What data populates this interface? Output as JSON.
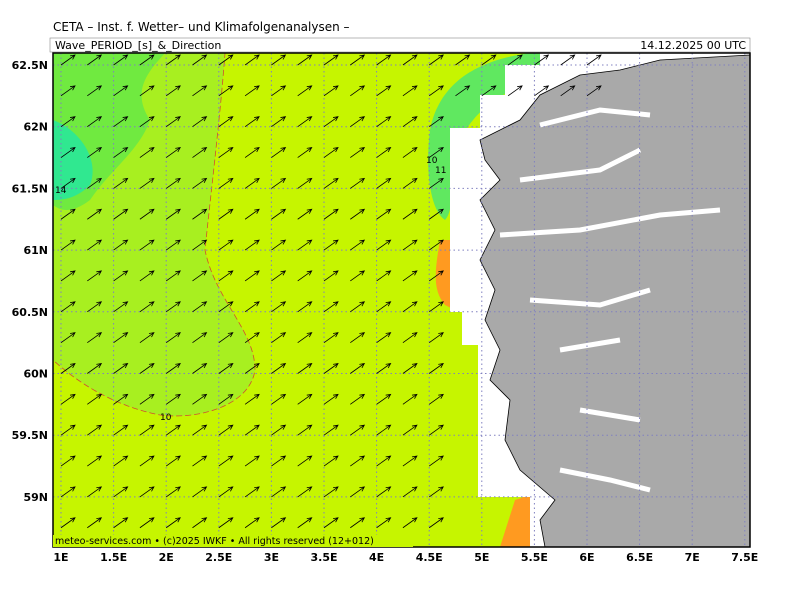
{
  "header": {
    "institute": "CETA – Inst. f. Wetter– und Klimafolgenanalysen –",
    "parameter": "Wave_PERIOD_[s]_&_Direction",
    "datetime": "14.12.2025 00 UTC"
  },
  "axes": {
    "lat_labels": [
      "62.5N",
      "62N",
      "61.5N",
      "61N",
      "60.5N",
      "60N",
      "59.5N",
      "59N"
    ],
    "lon_labels": [
      "1E",
      "1.5E",
      "2E",
      "2.5E",
      "3E",
      "3.5E",
      "4E",
      "4.5E",
      "5E",
      "5.5E",
      "6E",
      "6.5E",
      "7E",
      "7.5E"
    ]
  },
  "contour_labels": [
    "10",
    "11",
    "14",
    "10"
  ],
  "footer": "meteo-services.com • (c)2025 IWKF • All rights reserved (12+012)"
}
